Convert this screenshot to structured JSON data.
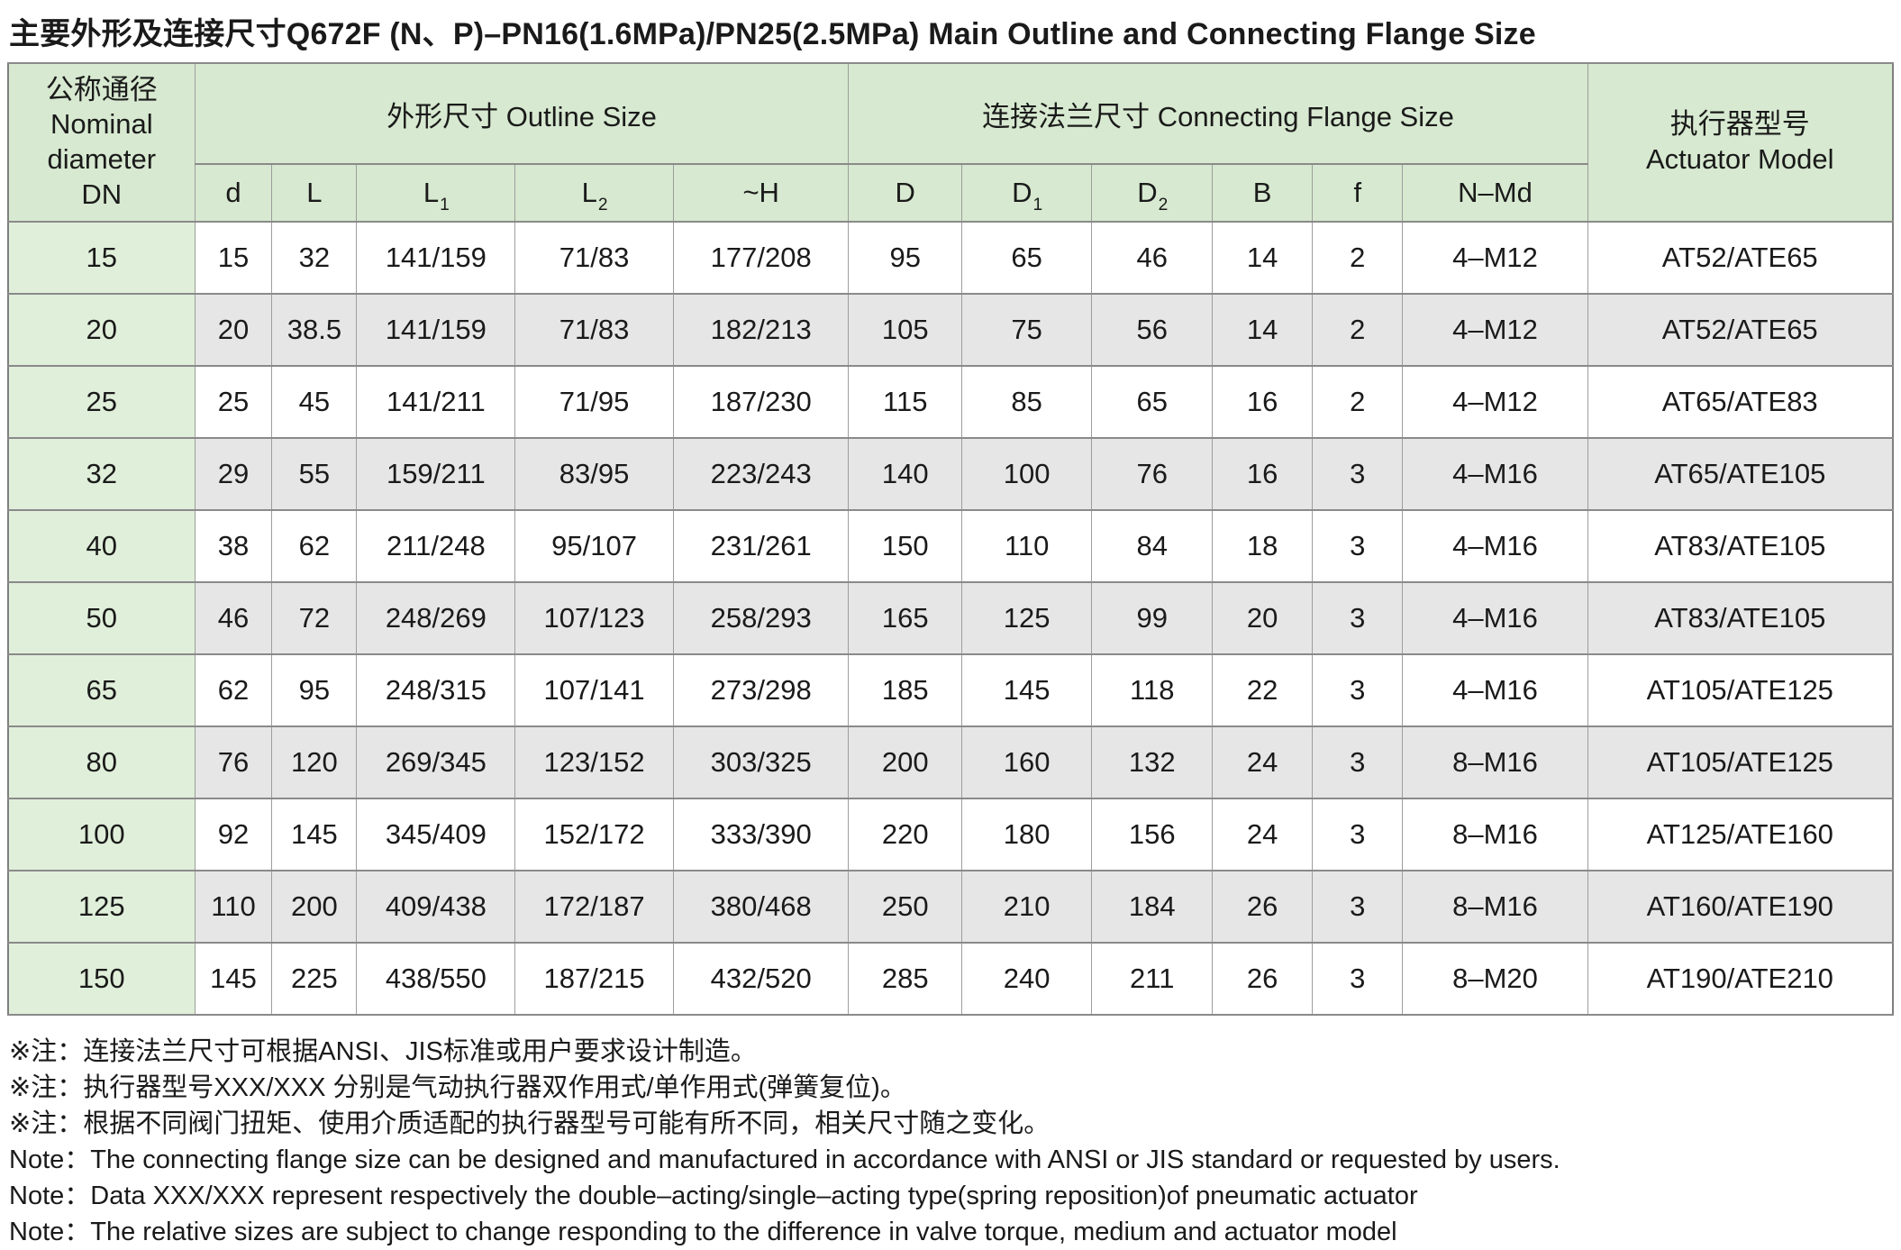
{
  "title": "主要外形及连接尺寸Q672F (N、P)–PN16(1.6MPa)/PN25(2.5MPa) Main Outline and Connecting Flange Size",
  "table": {
    "dn_header": "公称通径\nNominal\ndiameter\nDN",
    "groups": {
      "outline": "外形尺寸 Outline Size",
      "flange": "连接法兰尺寸 Connecting Flange Size"
    },
    "actuator_header": "执行器型号\nActuator Model",
    "columns": [
      {
        "base": "d",
        "sub": ""
      },
      {
        "base": "L",
        "sub": ""
      },
      {
        "base": "L",
        "sub": "1"
      },
      {
        "base": "L",
        "sub": "2"
      },
      {
        "base": "~H",
        "sub": ""
      },
      {
        "base": "D",
        "sub": ""
      },
      {
        "base": "D",
        "sub": "1"
      },
      {
        "base": "D",
        "sub": "2"
      },
      {
        "base": "B",
        "sub": ""
      },
      {
        "base": "f",
        "sub": ""
      },
      {
        "base": "N–Md",
        "sub": ""
      }
    ],
    "rows": [
      [
        "15",
        "15",
        "32",
        "141/159",
        "71/83",
        "177/208",
        "95",
        "65",
        "46",
        "14",
        "2",
        "4–M12",
        "AT52/ATE65"
      ],
      [
        "20",
        "20",
        "38.5",
        "141/159",
        "71/83",
        "182/213",
        "105",
        "75",
        "56",
        "14",
        "2",
        "4–M12",
        "AT52/ATE65"
      ],
      [
        "25",
        "25",
        "45",
        "141/211",
        "71/95",
        "187/230",
        "115",
        "85",
        "65",
        "16",
        "2",
        "4–M12",
        "AT65/ATE83"
      ],
      [
        "32",
        "29",
        "55",
        "159/211",
        "83/95",
        "223/243",
        "140",
        "100",
        "76",
        "16",
        "3",
        "4–M16",
        "AT65/ATE105"
      ],
      [
        "40",
        "38",
        "62",
        "211/248",
        "95/107",
        "231/261",
        "150",
        "110",
        "84",
        "18",
        "3",
        "4–M16",
        "AT83/ATE105"
      ],
      [
        "50",
        "46",
        "72",
        "248/269",
        "107/123",
        "258/293",
        "165",
        "125",
        "99",
        "20",
        "3",
        "4–M16",
        "AT83/ATE105"
      ],
      [
        "65",
        "62",
        "95",
        "248/315",
        "107/141",
        "273/298",
        "185",
        "145",
        "118",
        "22",
        "3",
        "4–M16",
        "AT105/ATE125"
      ],
      [
        "80",
        "76",
        "120",
        "269/345",
        "123/152",
        "303/325",
        "200",
        "160",
        "132",
        "24",
        "3",
        "8–M16",
        "AT105/ATE125"
      ],
      [
        "100",
        "92",
        "145",
        "345/409",
        "152/172",
        "333/390",
        "220",
        "180",
        "156",
        "24",
        "3",
        "8–M16",
        "AT125/ATE160"
      ],
      [
        "125",
        "110",
        "200",
        "409/438",
        "172/187",
        "380/468",
        "250",
        "210",
        "184",
        "26",
        "3",
        "8–M16",
        "AT160/ATE190"
      ],
      [
        "150",
        "145",
        "225",
        "438/550",
        "187/215",
        "432/520",
        "285",
        "240",
        "211",
        "26",
        "3",
        "8–M20",
        "AT190/ATE210"
      ]
    ]
  },
  "notes": [
    "※注：连接法兰尺寸可根据ANSI、JIS标准或用户要求设计制造。",
    "※注：执行器型号XXX/XXX 分别是气动执行器双作用式/单作用式(弹簧复位)。",
    "※注：根据不同阀门扭矩、使用介质适配的执行器型号可能有所不同，相关尺寸随之变化。",
    "Note：The connecting flange size can be designed and manufactured in accordance with ANSI or JIS standard or requested by users.",
    "Note：Data XXX/XXX represent respectively the double–acting/single–acting type(spring reposition)of pneumatic actuator",
    "Note：The relative sizes are subject to change responding to the difference in valve torque, medium and actuator model"
  ],
  "colors": {
    "header_green": "#d7e9d0",
    "dn_column_green": "#e0efda",
    "stripe_gray": "#e6e6e6",
    "border_gray": "#8a8a8a",
    "text": "#1a1a1a"
  }
}
